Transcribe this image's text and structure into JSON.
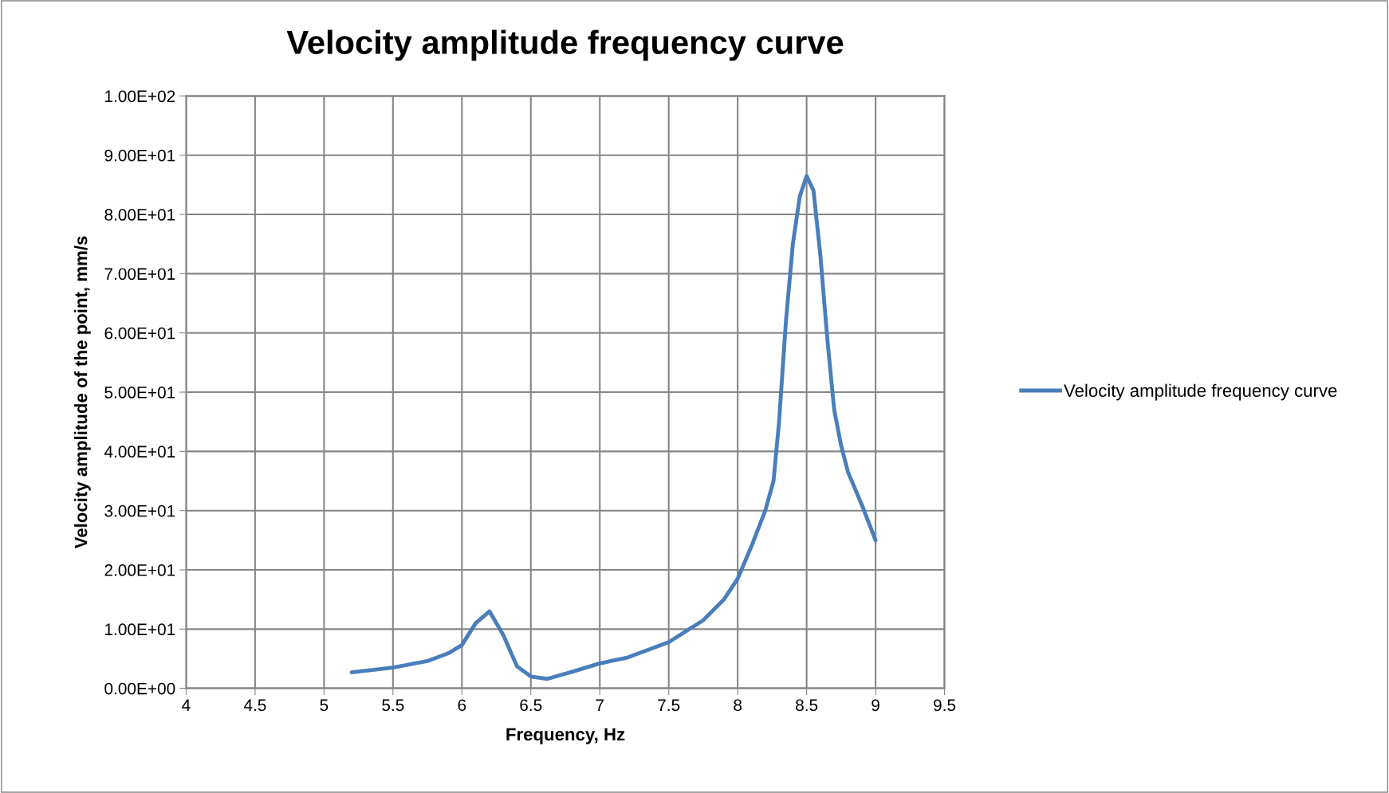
{
  "chart_data": {
    "type": "line",
    "title": "Velocity amplitude frequency curve",
    "xlabel": "Frequency, Hz",
    "ylabel": "Velocity amplitude of the point, mm/s",
    "x": [
      5.2,
      5.5,
      5.75,
      5.9,
      6.0,
      6.1,
      6.2,
      6.3,
      6.4,
      6.5,
      6.62,
      6.8,
      7.0,
      7.2,
      7.5,
      7.75,
      7.9,
      8.0,
      8.1,
      8.2,
      8.26,
      8.3,
      8.35,
      8.4,
      8.45,
      8.5,
      8.55,
      8.6,
      8.65,
      8.7,
      8.75,
      8.8,
      8.9,
      9.0
    ],
    "series": [
      {
        "name": "Velocity amplitude frequency curve",
        "color": "#4a7ebb",
        "values": [
          2.7,
          3.5,
          4.6,
          5.9,
          7.3,
          11,
          13,
          9,
          3.7,
          2.0,
          1.6,
          2.8,
          4.2,
          5.2,
          7.8,
          11.5,
          15,
          18.5,
          24,
          30,
          35,
          45,
          62,
          75,
          83,
          86.5,
          84,
          73,
          59,
          47,
          41,
          36.5,
          31,
          25
        ]
      }
    ],
    "xlim": [
      4,
      9.5
    ],
    "xticks": [
      4,
      4.5,
      5,
      5.5,
      6,
      6.5,
      7,
      7.5,
      8,
      8.5,
      9,
      9.5
    ],
    "ylim": [
      0,
      100
    ],
    "yticks": [
      {
        "value": 0,
        "label": "0.00E+00"
      },
      {
        "value": 10,
        "label": "1.00E+01"
      },
      {
        "value": 20,
        "label": "2.00E+01"
      },
      {
        "value": 30,
        "label": "3.00E+01"
      },
      {
        "value": 40,
        "label": "4.00E+01"
      },
      {
        "value": 50,
        "label": "5.00E+01"
      },
      {
        "value": 60,
        "label": "6.00E+01"
      },
      {
        "value": 70,
        "label": "7.00E+01"
      },
      {
        "value": 80,
        "label": "8.00E+01"
      },
      {
        "value": 90,
        "label": "9.00E+01"
      },
      {
        "value": 100,
        "label": "1.00E+02"
      }
    ],
    "grid": true,
    "legend": "right",
    "marker": "none",
    "line_style": "solid"
  }
}
